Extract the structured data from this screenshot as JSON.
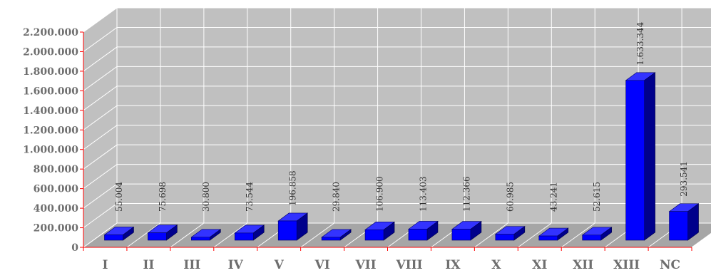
{
  "chart_data": {
    "type": "bar",
    "three_d": true,
    "categories": [
      "I",
      "II",
      "III",
      "IV",
      "V",
      "VI",
      "VII",
      "VIII",
      "IX",
      "X",
      "XI",
      "XII",
      "XIII",
      "NC"
    ],
    "values": [
      55004,
      75698,
      30800,
      73544,
      196858,
      29840,
      106900,
      113403,
      112366,
      60985,
      43241,
      52615,
      1633344,
      293541
    ],
    "data_labels": [
      "55.004",
      "75.698",
      "30.800",
      "73.544",
      "196.858",
      "29.840",
      "106.900",
      "113.403",
      "112.366",
      "60.985",
      "43.241",
      "52.615",
      "1.633.344",
      "293.541"
    ],
    "y_ticks": [
      0,
      200000,
      400000,
      600000,
      800000,
      1000000,
      1200000,
      1400000,
      1600000,
      1800000,
      2000000,
      2200000
    ],
    "y_tick_labels": [
      "0",
      "200.000",
      "400.000",
      "600.000",
      "800.000",
      "1.000.000",
      "1.200.000",
      "1.400.000",
      "1.600.000",
      "1.800.000",
      "2.000.000",
      "2.200.000"
    ],
    "ylim": [
      0,
      2200000
    ],
    "title": "",
    "xlabel": "",
    "ylabel": "",
    "grid": true,
    "legend": "none",
    "colors": {
      "bar_front": "#0000ff",
      "bar_top": "#3333ff",
      "bar_side": "#00008b",
      "wall": "#c0c0c0",
      "floor": "#a6a6a6",
      "grid": "#ffffff",
      "axis": "#ff0000",
      "tick_text": "#6e6e6e"
    }
  }
}
